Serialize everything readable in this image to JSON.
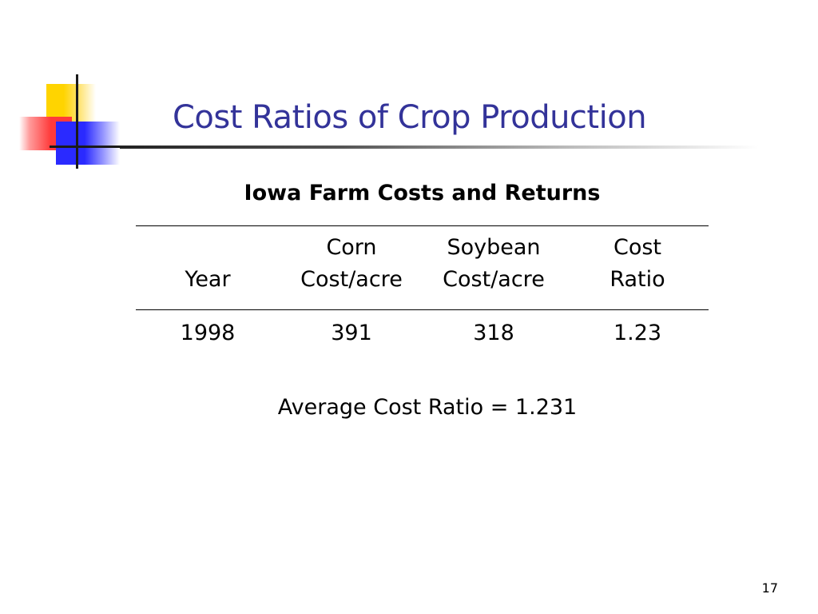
{
  "slide": {
    "title": "Cost Ratios of Crop Production",
    "page_number": "17"
  },
  "table": {
    "caption": "Iowa Farm Costs and Returns",
    "headers": [
      {
        "line1": "",
        "line2": "Year"
      },
      {
        "line1": "Corn",
        "line2": "Cost/acre"
      },
      {
        "line1": "Soybean",
        "line2": "Cost/acre"
      },
      {
        "line1": "Cost",
        "line2": "Ratio"
      }
    ],
    "rows": [
      [
        "1998",
        "391",
        "318",
        "1.23"
      ]
    ]
  },
  "summary": {
    "average_text": "Average Cost Ratio = 1.231"
  },
  "colors": {
    "title": "#333399",
    "logo_yellow": "#ffd400",
    "logo_red": "#ff3a3a",
    "logo_blue": "#2a2aff"
  }
}
